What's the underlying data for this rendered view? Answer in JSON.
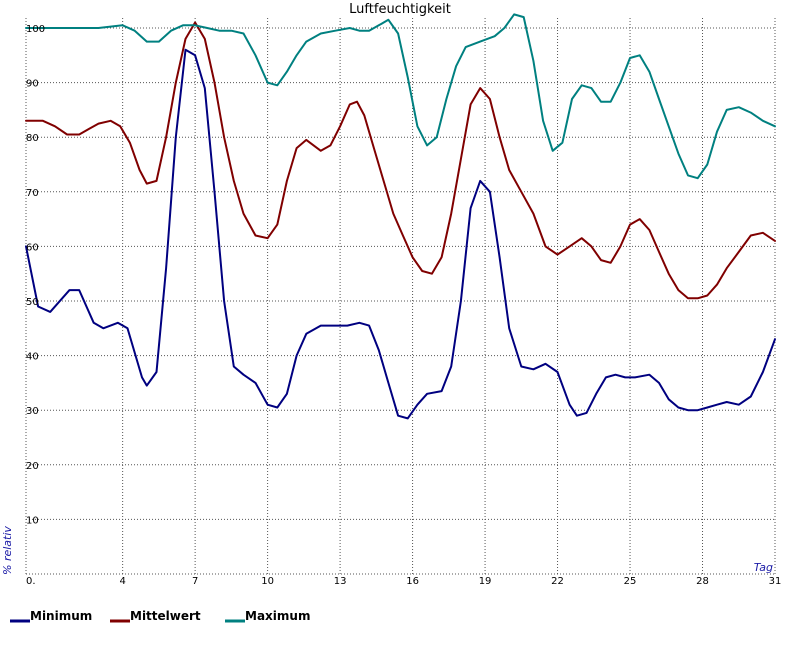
{
  "chart_data": {
    "type": "line",
    "title": "Luftfeuchtigkeit",
    "xlabel": "Tag",
    "ylabel": "% relativ",
    "xlim": [
      0,
      31
    ],
    "ylim": [
      0,
      100
    ],
    "grid": true,
    "legend_position": "bottom-left",
    "x_ticks": [
      {
        "value": 0,
        "label": "0."
      },
      {
        "value": 4,
        "label": "4"
      },
      {
        "value": 7,
        "label": "7"
      },
      {
        "value": 10,
        "label": "10"
      },
      {
        "value": 13,
        "label": "13"
      },
      {
        "value": 16,
        "label": "16"
      },
      {
        "value": 19,
        "label": "19"
      },
      {
        "value": 22,
        "label": "22"
      },
      {
        "value": 25,
        "label": "25"
      },
      {
        "value": 28,
        "label": "28"
      },
      {
        "value": 31,
        "label": "31"
      }
    ],
    "y_ticks": [
      {
        "value": 10,
        "label": "10"
      },
      {
        "value": 20,
        "label": "20"
      },
      {
        "value": 30,
        "label": "30"
      },
      {
        "value": 40,
        "label": "40"
      },
      {
        "value": 50,
        "label": "50"
      },
      {
        "value": 60,
        "label": "60"
      },
      {
        "value": 70,
        "label": "70"
      },
      {
        "value": 80,
        "label": "80"
      },
      {
        "value": 90,
        "label": "90"
      },
      {
        "value": 100,
        "label": "100"
      }
    ],
    "series": [
      {
        "name": "Minimum",
        "color": "#000080",
        "points": [
          [
            0,
            60
          ],
          [
            0.5,
            49
          ],
          [
            1,
            48
          ],
          [
            1.8,
            52
          ],
          [
            2.2,
            52
          ],
          [
            2.8,
            46
          ],
          [
            3.2,
            45
          ],
          [
            3.8,
            46
          ],
          [
            4.2,
            45
          ],
          [
            4.8,
            36
          ],
          [
            5,
            34.5
          ],
          [
            5.4,
            37
          ],
          [
            5.8,
            56
          ],
          [
            6.2,
            80
          ],
          [
            6.6,
            96
          ],
          [
            7,
            95
          ],
          [
            7.4,
            89
          ],
          [
            7.8,
            70
          ],
          [
            8.2,
            50
          ],
          [
            8.6,
            38
          ],
          [
            9,
            36.5
          ],
          [
            9.5,
            35
          ],
          [
            10,
            31
          ],
          [
            10.4,
            30.5
          ],
          [
            10.8,
            33
          ],
          [
            11.2,
            40
          ],
          [
            11.6,
            44
          ],
          [
            12.2,
            45.5
          ],
          [
            12.8,
            45.5
          ],
          [
            13.3,
            45.5
          ],
          [
            13.8,
            46
          ],
          [
            14.2,
            45.5
          ],
          [
            14.6,
            41
          ],
          [
            15,
            35
          ],
          [
            15.4,
            29
          ],
          [
            15.8,
            28.5
          ],
          [
            16.2,
            31
          ],
          [
            16.6,
            33
          ],
          [
            17.2,
            33.5
          ],
          [
            17.6,
            38
          ],
          [
            18,
            50
          ],
          [
            18.4,
            67
          ],
          [
            18.8,
            72
          ],
          [
            19.2,
            70
          ],
          [
            19.6,
            58
          ],
          [
            20,
            45
          ],
          [
            20.5,
            38
          ],
          [
            21,
            37.5
          ],
          [
            21.5,
            38.5
          ],
          [
            22,
            37
          ],
          [
            22.5,
            31
          ],
          [
            22.8,
            29
          ],
          [
            23.2,
            29.5
          ],
          [
            23.6,
            33
          ],
          [
            24,
            36
          ],
          [
            24.4,
            36.5
          ],
          [
            24.8,
            36
          ],
          [
            25.2,
            36
          ],
          [
            25.8,
            36.5
          ],
          [
            26.2,
            35
          ],
          [
            26.6,
            32
          ],
          [
            27,
            30.5
          ],
          [
            27.4,
            30
          ],
          [
            27.8,
            30
          ],
          [
            28.2,
            30.5
          ],
          [
            28.6,
            31
          ],
          [
            29,
            31.5
          ],
          [
            29.5,
            31
          ],
          [
            30,
            32.5
          ],
          [
            30.5,
            37
          ],
          [
            31,
            43
          ]
        ]
      },
      {
        "name": "Mittelwert",
        "color": "#800000",
        "points": [
          [
            0,
            83
          ],
          [
            0.7,
            83
          ],
          [
            1.2,
            82
          ],
          [
            1.7,
            80.5
          ],
          [
            2.2,
            80.5
          ],
          [
            2.6,
            81.5
          ],
          [
            3,
            82.5
          ],
          [
            3.5,
            83
          ],
          [
            3.9,
            82
          ],
          [
            4.3,
            79
          ],
          [
            4.7,
            74
          ],
          [
            5,
            71.5
          ],
          [
            5.4,
            72
          ],
          [
            5.8,
            80
          ],
          [
            6.2,
            90
          ],
          [
            6.6,
            98
          ],
          [
            7,
            101
          ],
          [
            7.4,
            98
          ],
          [
            7.8,
            90
          ],
          [
            8.2,
            80
          ],
          [
            8.6,
            72
          ],
          [
            9,
            66
          ],
          [
            9.5,
            62
          ],
          [
            10,
            61.5
          ],
          [
            10.4,
            64
          ],
          [
            10.8,
            72
          ],
          [
            11.2,
            78
          ],
          [
            11.6,
            79.5
          ],
          [
            12.2,
            77.5
          ],
          [
            12.6,
            78.5
          ],
          [
            13,
            82
          ],
          [
            13.4,
            86
          ],
          [
            13.7,
            86.5
          ],
          [
            14,
            84
          ],
          [
            14.4,
            78
          ],
          [
            14.8,
            72
          ],
          [
            15.2,
            66
          ],
          [
            15.6,
            62
          ],
          [
            16,
            58
          ],
          [
            16.4,
            55.5
          ],
          [
            16.8,
            55
          ],
          [
            17.2,
            58
          ],
          [
            17.6,
            66
          ],
          [
            18,
            76
          ],
          [
            18.4,
            86
          ],
          [
            18.8,
            89
          ],
          [
            19.2,
            87
          ],
          [
            19.6,
            80
          ],
          [
            20,
            74
          ],
          [
            20.5,
            70
          ],
          [
            21,
            66
          ],
          [
            21.5,
            60
          ],
          [
            22,
            58.5
          ],
          [
            22.5,
            60
          ],
          [
            23,
            61.5
          ],
          [
            23.4,
            60
          ],
          [
            23.8,
            57.5
          ],
          [
            24.2,
            57
          ],
          [
            24.6,
            60
          ],
          [
            25,
            64
          ],
          [
            25.4,
            65
          ],
          [
            25.8,
            63
          ],
          [
            26.2,
            59
          ],
          [
            26.6,
            55
          ],
          [
            27,
            52
          ],
          [
            27.4,
            50.5
          ],
          [
            27.8,
            50.5
          ],
          [
            28.2,
            51
          ],
          [
            28.6,
            53
          ],
          [
            29,
            56
          ],
          [
            29.5,
            59
          ],
          [
            30,
            62
          ],
          [
            30.5,
            62.5
          ],
          [
            31,
            61
          ]
        ]
      },
      {
        "name": "Maximum",
        "color": "#008080",
        "points": [
          [
            0,
            100
          ],
          [
            1,
            100
          ],
          [
            2,
            100
          ],
          [
            3,
            100
          ],
          [
            4,
            100.5
          ],
          [
            4.5,
            99.5
          ],
          [
            5,
            97.5
          ],
          [
            5.5,
            97.5
          ],
          [
            6,
            99.5
          ],
          [
            6.5,
            100.5
          ],
          [
            7,
            100.5
          ],
          [
            7.5,
            100
          ],
          [
            8,
            99.5
          ],
          [
            8.5,
            99.5
          ],
          [
            9,
            99
          ],
          [
            9.5,
            95
          ],
          [
            10,
            90
          ],
          [
            10.4,
            89.5
          ],
          [
            10.8,
            92
          ],
          [
            11.2,
            95
          ],
          [
            11.6,
            97.5
          ],
          [
            12.2,
            99
          ],
          [
            12.8,
            99.5
          ],
          [
            13.4,
            100
          ],
          [
            13.8,
            99.5
          ],
          [
            14.2,
            99.5
          ],
          [
            14.6,
            100.5
          ],
          [
            15,
            101.5
          ],
          [
            15.4,
            99
          ],
          [
            15.8,
            91
          ],
          [
            16.2,
            82
          ],
          [
            16.6,
            78.5
          ],
          [
            17,
            80
          ],
          [
            17.4,
            87
          ],
          [
            17.8,
            93
          ],
          [
            18.2,
            96.5
          ],
          [
            18.8,
            97.5
          ],
          [
            19.4,
            98.5
          ],
          [
            19.8,
            100
          ],
          [
            20.2,
            102.5
          ],
          [
            20.6,
            102
          ],
          [
            21,
            94
          ],
          [
            21.4,
            83
          ],
          [
            21.8,
            77.5
          ],
          [
            22.2,
            79
          ],
          [
            22.6,
            87
          ],
          [
            23,
            89.5
          ],
          [
            23.4,
            89
          ],
          [
            23.8,
            86.5
          ],
          [
            24.2,
            86.5
          ],
          [
            24.6,
            90
          ],
          [
            25,
            94.5
          ],
          [
            25.4,
            95
          ],
          [
            25.8,
            92
          ],
          [
            26.2,
            87
          ],
          [
            26.6,
            82
          ],
          [
            27,
            77
          ],
          [
            27.4,
            73
          ],
          [
            27.8,
            72.5
          ],
          [
            28.2,
            75
          ],
          [
            28.6,
            81
          ],
          [
            29,
            85
          ],
          [
            29.5,
            85.5
          ],
          [
            30,
            84.5
          ],
          [
            30.5,
            83
          ],
          [
            31,
            82
          ]
        ]
      }
    ]
  }
}
